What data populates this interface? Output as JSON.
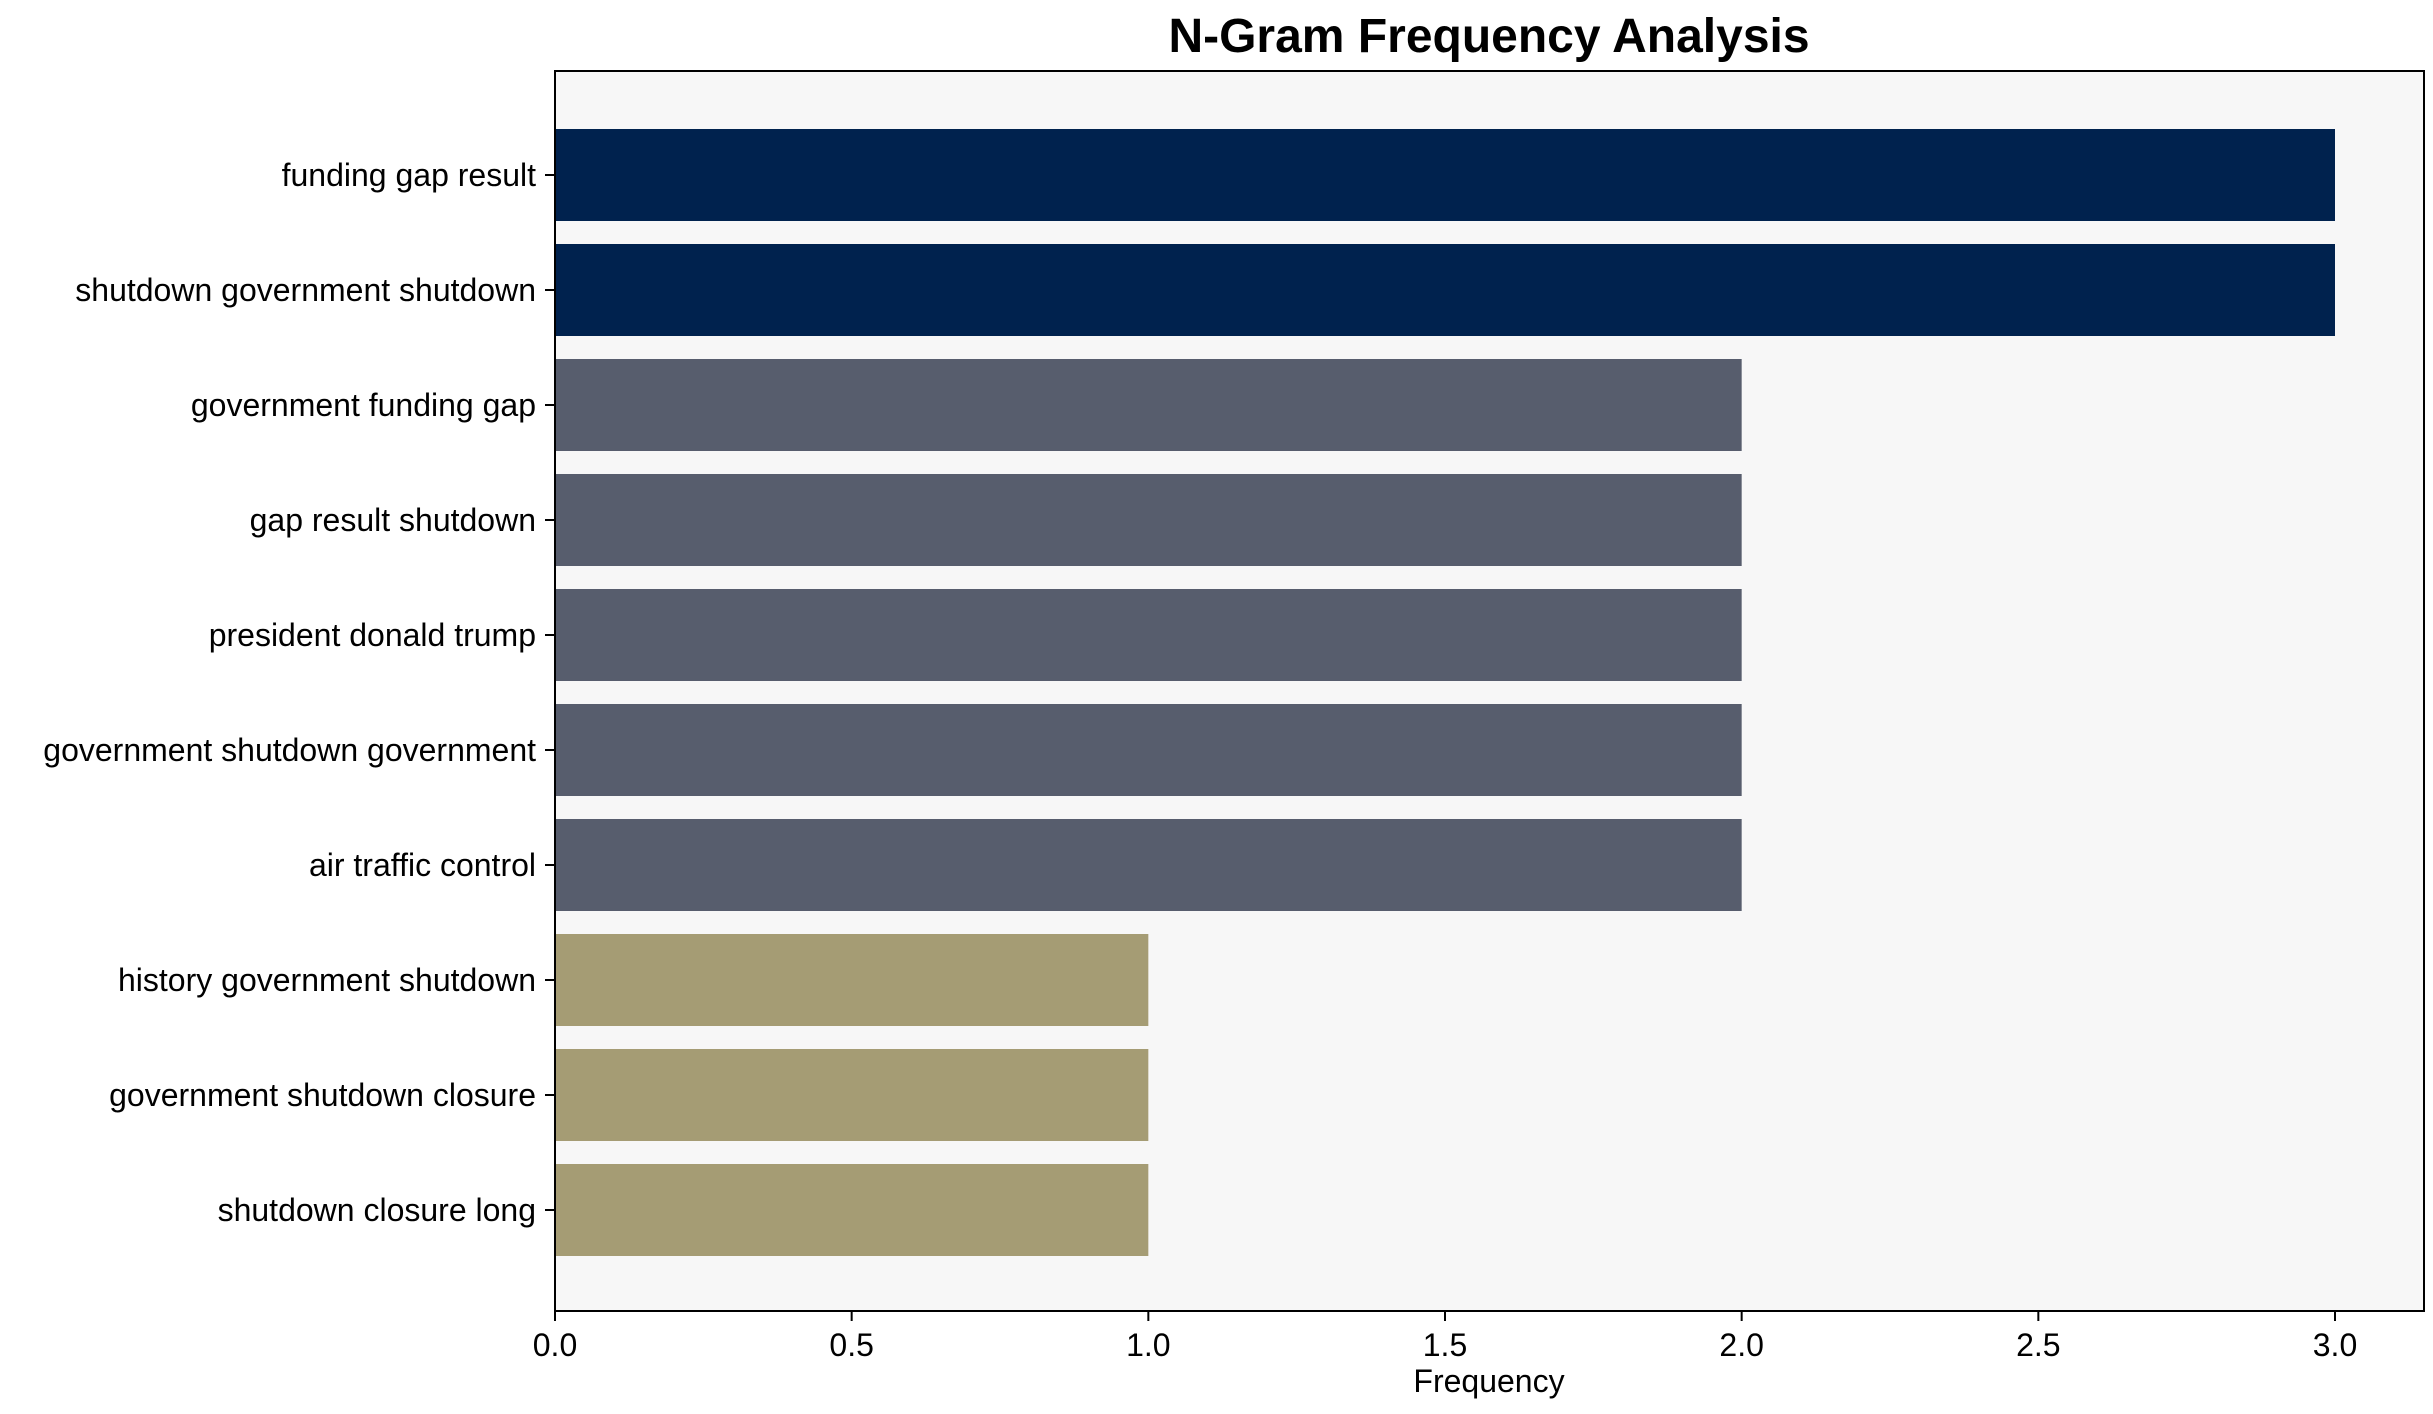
{
  "chart_data": {
    "type": "bar",
    "orientation": "horizontal",
    "title": "N-Gram Frequency Analysis",
    "xlabel": "Frequency",
    "ylabel": "",
    "xlim": [
      0,
      3.15
    ],
    "xticks": [
      "0.0",
      "0.5",
      "1.0",
      "1.5",
      "2.0",
      "2.5",
      "3.0"
    ],
    "grid": false,
    "plot_background": "#f7f7f7",
    "categories": [
      "funding gap result",
      "shutdown government shutdown",
      "government funding gap",
      "gap result shutdown",
      "president donald trump",
      "government shutdown government",
      "air traffic control",
      "history government shutdown",
      "government shutdown closure",
      "shutdown closure long"
    ],
    "values": [
      3,
      3,
      2,
      2,
      2,
      2,
      2,
      1,
      1,
      1
    ],
    "bar_colors": [
      "#00224e",
      "#00224e",
      "#575d6d",
      "#575d6d",
      "#575d6d",
      "#575d6d",
      "#575d6d",
      "#a59c74",
      "#a59c74",
      "#a59c74"
    ]
  }
}
